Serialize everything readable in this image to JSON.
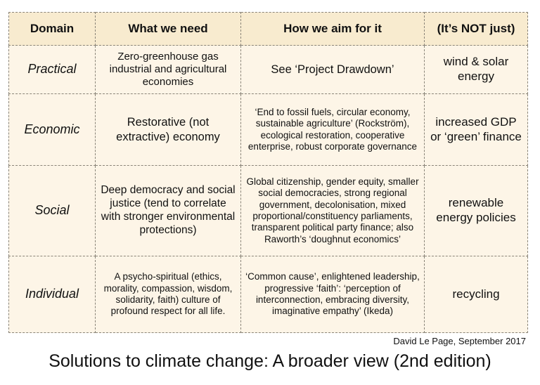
{
  "table": {
    "headers": [
      "Domain",
      "What we need",
      "How we aim for it",
      "(It’s NOT just)"
    ],
    "rows": [
      {
        "domain": "Practical",
        "need": "Zero-greenhouse gas industrial and agricultural economies",
        "aim": "See ‘Project Drawdown’",
        "not_just": "wind & solar energy"
      },
      {
        "domain": "Economic",
        "need": "Restorative (not extractive) economy",
        "aim": "‘End to fossil fuels, circular economy, sustainable agriculture’ (Rockström), ecological restoration, cooperative enterprise, robust corporate governance",
        "not_just": "increased GDP or ‘green’ finance"
      },
      {
        "domain": "Social",
        "need": "Deep democracy and social justice (tend to correlate with stronger environmental protections)",
        "aim": "Global citizenship, gender equity, smaller social democracies, strong regional government, decolonisation, mixed proportional/constituency parliaments, transparent political party finance; also Raworth’s ‘doughnut economics’",
        "not_just": "renewable energy policies"
      },
      {
        "domain": "Individual",
        "need": "A psycho-spiritual (ethics, morality, compassion, wisdom, solidarity, faith) culture of profound respect for all life.",
        "aim": "‘Common cause’, enlightened leadership, progressive ‘faith’: ‘perception of interconnection, embracing diversity, imaginative empathy’ (Ikeda)",
        "not_just": "recycling"
      }
    ]
  },
  "credit": "David Le Page, September 2017",
  "title": "Solutions to climate change: A broader view (2nd edition)",
  "colors": {
    "cell_background": "#fdf5e7",
    "header_background": "#f8ebcf",
    "border": "#8a8478"
  }
}
